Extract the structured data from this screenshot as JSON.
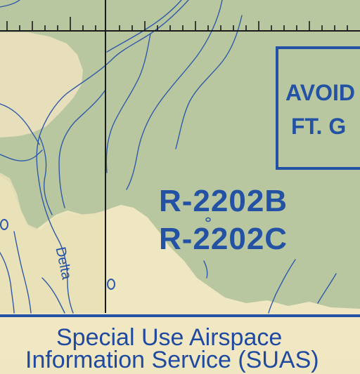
{
  "map": {
    "restricted_area_labels": [
      "R-2202B",
      "R-2202C"
    ],
    "avoid_notice": {
      "line1": "AVOID",
      "line2": "FT. G"
    },
    "river_label": "Delta",
    "banner": {
      "line1": "Special Use Airspace",
      "line2": "Information Service (SUAS)"
    },
    "colors": {
      "lowland": "#efe6c2",
      "upland_shade": "#b9c7a0",
      "water_and_labels": "#2352a5",
      "grid_line": "#1a1a1a"
    }
  }
}
